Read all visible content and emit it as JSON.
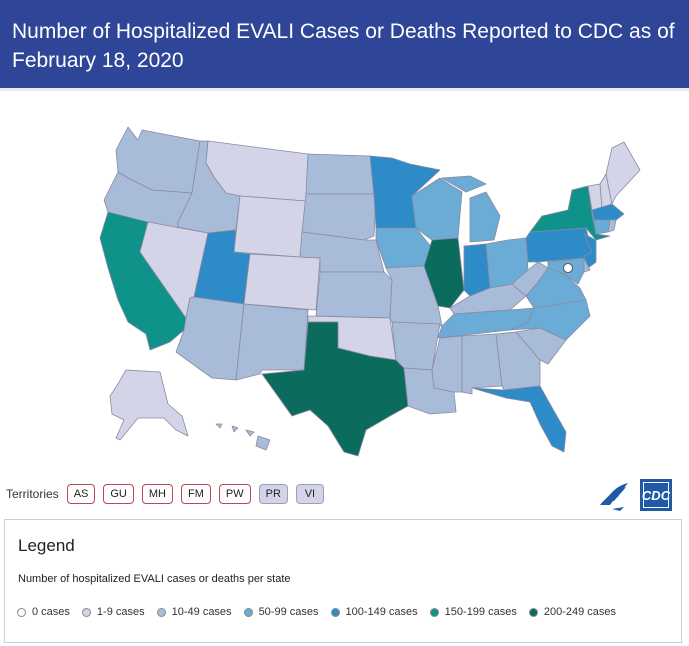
{
  "header": {
    "title": "Number of Hospitalized EVALI Cases or Deaths Reported to CDC as of February 18, 2020"
  },
  "territories": {
    "label": "Territories",
    "items": [
      {
        "code": "AS",
        "category": 0
      },
      {
        "code": "GU",
        "category": 0
      },
      {
        "code": "MH",
        "category": 0
      },
      {
        "code": "FM",
        "category": 0
      },
      {
        "code": "PW",
        "category": 0
      },
      {
        "code": "PR",
        "category": 1
      },
      {
        "code": "VI",
        "category": 1
      }
    ]
  },
  "logo": {
    "cdc_text": "CDC"
  },
  "legend": {
    "title": "Legend",
    "subtitle": "Number of hospitalized EVALI cases or deaths per state",
    "items": [
      {
        "label": "0 cases",
        "color": "#ffffff"
      },
      {
        "label": "1-9 cases",
        "color": "#d4d4e8"
      },
      {
        "label": "10-49 cases",
        "color": "#a8bcd9"
      },
      {
        "label": "50-99 cases",
        "color": "#6aacd6"
      },
      {
        "label": "100-149 cases",
        "color": "#2d8bc8"
      },
      {
        "label": "150-199 cases",
        "color": "#0f928a"
      },
      {
        "label": "200-249 cases",
        "color": "#0b6b5c"
      }
    ]
  },
  "states": {
    "WA": 2,
    "OR": 2,
    "CA": 5,
    "NV": 1,
    "ID": 2,
    "MT": 1,
    "WY": 1,
    "UT": 4,
    "AZ": 2,
    "CO": 1,
    "NM": 2,
    "ND": 2,
    "SD": 2,
    "NE": 2,
    "KS": 2,
    "OK": 1,
    "TX": 6,
    "MN": 4,
    "IA": 3,
    "MO": 2,
    "AR": 2,
    "LA": 2,
    "WI": 3,
    "IL": 6,
    "MS": 2,
    "MI": 3,
    "IN": 4,
    "KY": 2,
    "TN": 3,
    "AL": 2,
    "OH": 3,
    "WV": 2,
    "GA": 2,
    "FL": 4,
    "SC": 2,
    "NC": 3,
    "VA": 3,
    "PA": 4,
    "NY": 5,
    "VT": 1,
    "NH": 1,
    "ME": 1,
    "MA": 4,
    "CT": 3,
    "RI": 2,
    "NJ": 4,
    "DE": 2,
    "MD": 3,
    "DC": 0,
    "AK": 1,
    "HI": 2
  }
}
